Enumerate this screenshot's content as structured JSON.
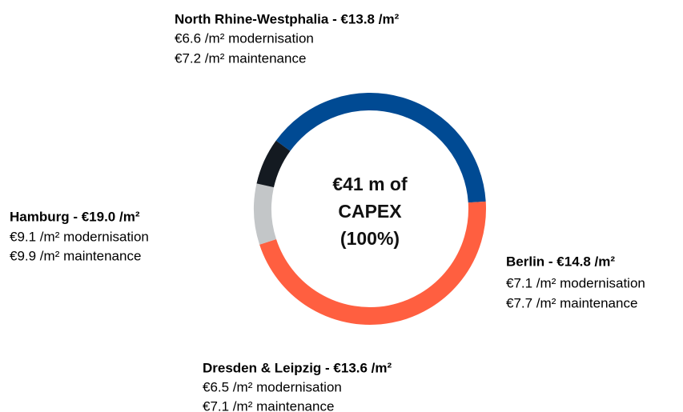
{
  "chart_data": {
    "type": "donut",
    "values": [
      39,
      46,
      8.5,
      6.5
    ],
    "colors": [
      "#004a93",
      "#ff5f40",
      "#c3c6c8",
      "#141a21"
    ],
    "center_label": [
      "€41 m of",
      "CAPEX",
      "(100%)"
    ],
    "annotations": [
      {
        "title": "North Rhine-Westphalia - €13.8 /m²",
        "lines": [
          "€6.6 /m² modernisation",
          "€7.2 /m² maintenance"
        ]
      },
      {
        "title": "Berlin - €14.8 /m²",
        "lines": [
          "€7.1 /m² modernisation",
          "€7.7 /m² maintenance"
        ]
      },
      {
        "title": "Dresden & Leipzig - €13.6 /m²",
        "lines": [
          "€6.5 /m² modernisation",
          "€7.1 /m² maintenance"
        ]
      },
      {
        "title": "Hamburg - €19.0 /m²",
        "lines": [
          "€9.1 /m² modernisation",
          "€9.9 /m² maintenance"
        ]
      }
    ]
  }
}
